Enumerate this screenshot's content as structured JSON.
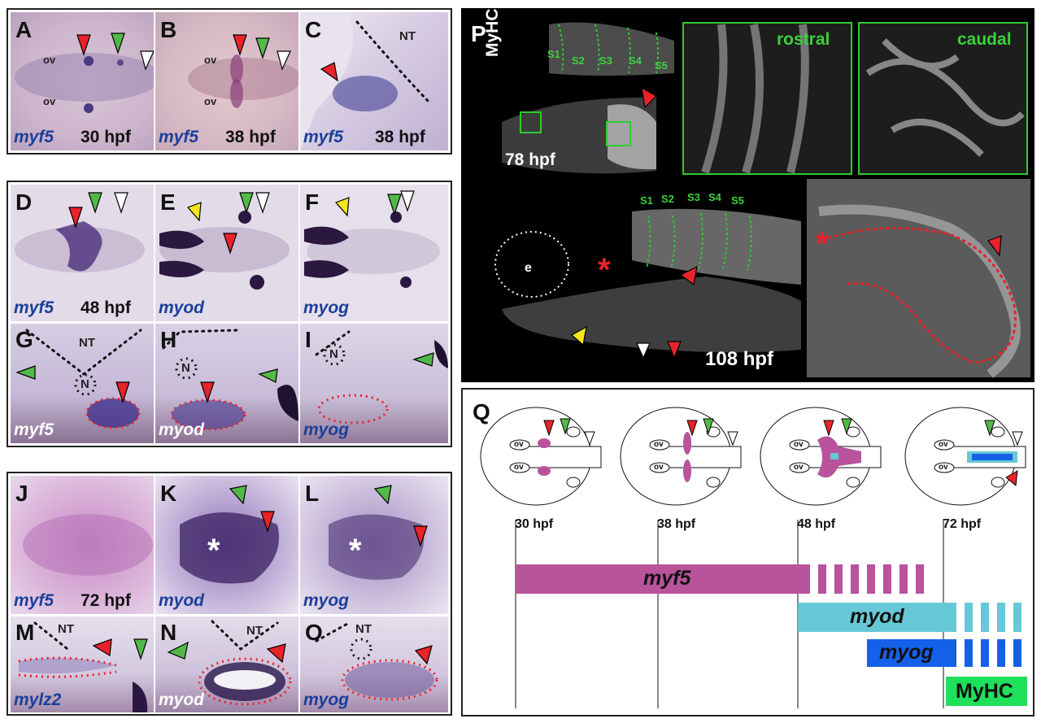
{
  "panel_labels": [
    "A",
    "B",
    "C",
    "D",
    "E",
    "F",
    "G",
    "H",
    "I",
    "J",
    "K",
    "L",
    "M",
    "N",
    "O",
    "P",
    "Q"
  ],
  "genes": {
    "myf5": "myf5",
    "myod": "myod",
    "myog": "myog",
    "mylz2": "mylz2",
    "myhc": "MyHC"
  },
  "stages": {
    "s30": "30 hpf",
    "s38": "38 hpf",
    "s48": "48 hpf",
    "s72": "72 hpf",
    "s78": "78 hpf",
    "s108": "108 hpf"
  },
  "annotations": {
    "ov": "ov",
    "nt": "NT",
    "n": "N",
    "e": "e",
    "asterisk": "*",
    "rostral": "rostral",
    "caudal": "caudal",
    "somites": [
      "S1",
      "S2",
      "S3",
      "S4",
      "S5"
    ]
  },
  "timeline": {
    "bars": [
      {
        "gene": "myf5",
        "solid_from": "30 hpf",
        "color": "#b8539c"
      },
      {
        "gene": "myod",
        "solid_from": "48 hpf",
        "color": "#66c8d6"
      },
      {
        "gene": "myog",
        "color": "#1560e8"
      },
      {
        "gene": "MyHC",
        "color": "#1ee05a"
      }
    ],
    "stage_ticks": [
      "30 hpf",
      "38 hpf",
      "48 hpf",
      "72 hpf"
    ]
  },
  "colors": {
    "arrow_red": "#e8232a",
    "arrow_green": "#52b948",
    "arrow_white": "#ffffff",
    "arrow_yellow": "#f5e51c",
    "gene_blue": "#1b3f9a",
    "label_green": "#3bd13b"
  }
}
